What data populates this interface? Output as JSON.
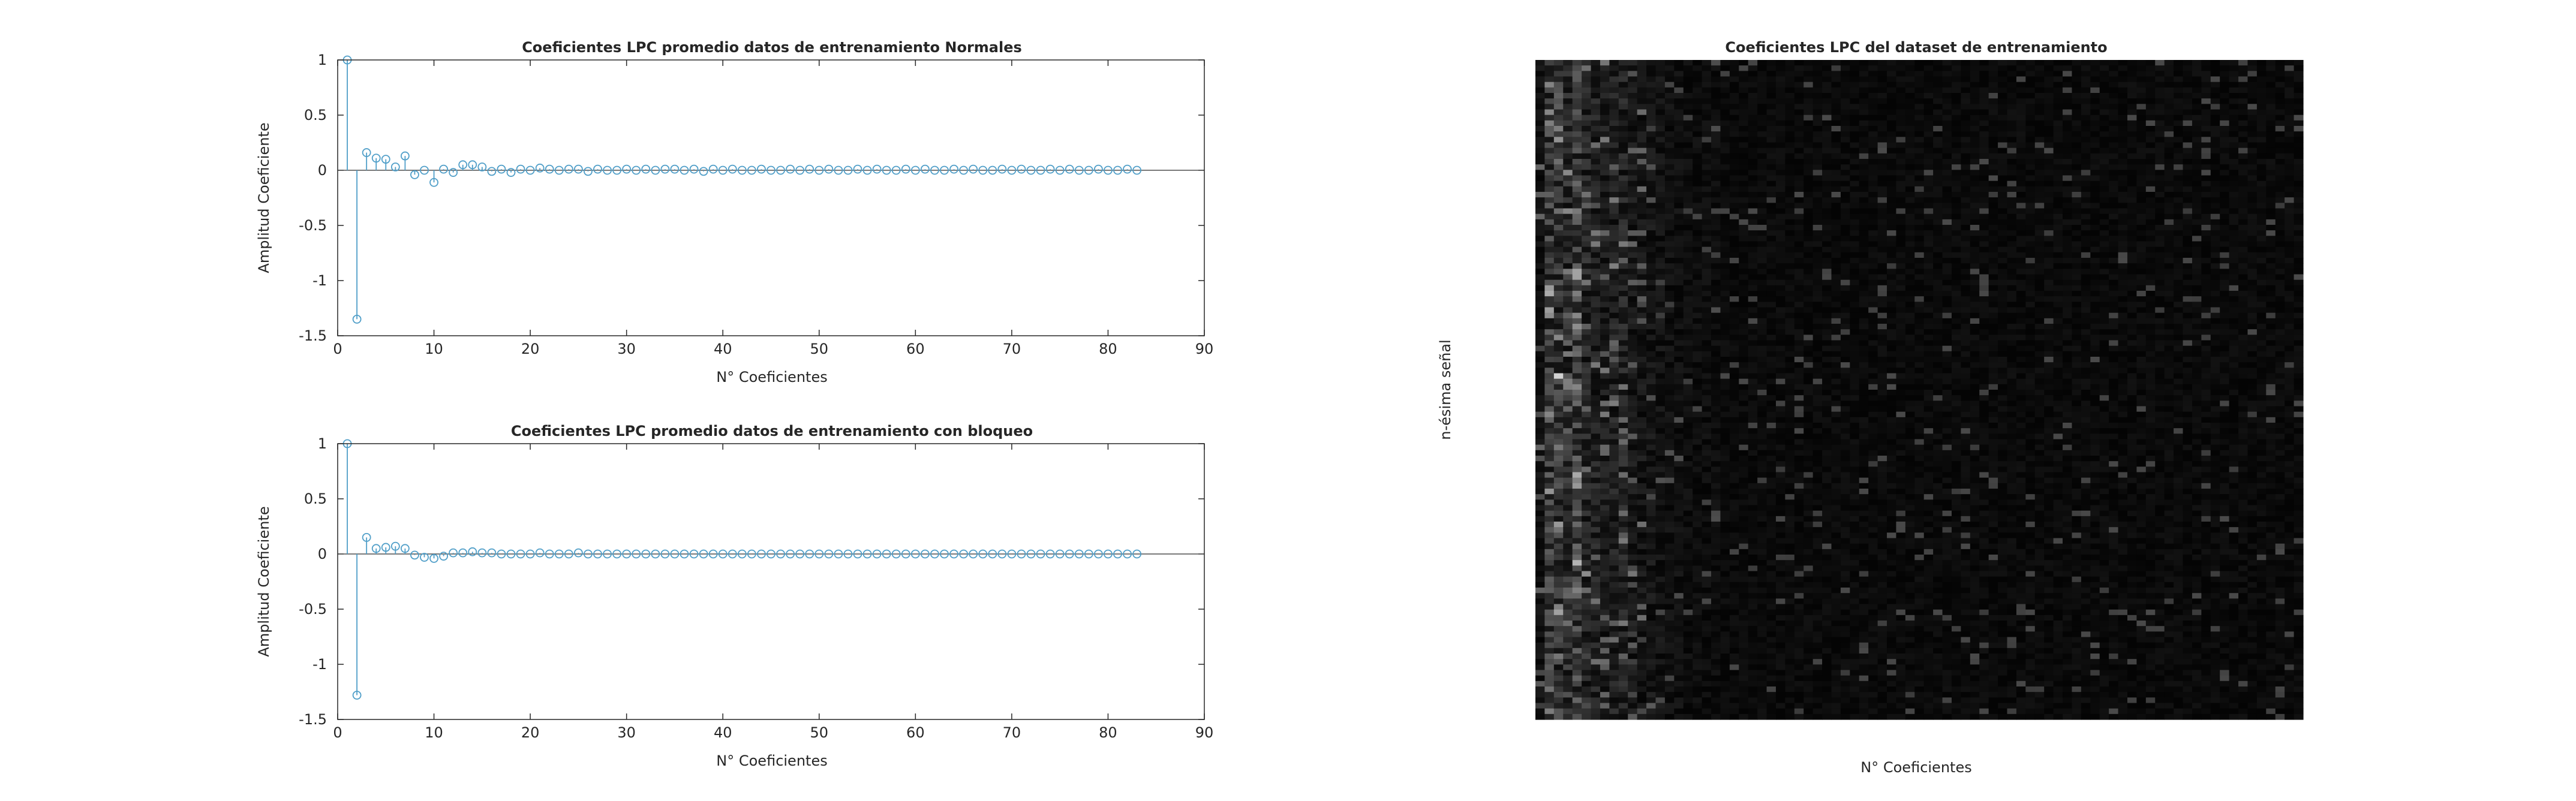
{
  "chart_data": [
    {
      "type": "stem",
      "title": "Coeficientes LPC promedio datos de entrenamiento Normales",
      "xlabel": "N° Coeficientes",
      "ylabel": "Amplitud Coeficiente",
      "xlim": [
        0,
        90
      ],
      "ylim": [
        -1.5,
        1
      ],
      "xticks": [
        "0",
        "10",
        "20",
        "30",
        "40",
        "50",
        "60",
        "70",
        "80",
        "90"
      ],
      "yticks": [
        "1",
        "0.5",
        "0",
        "-0.5",
        "-1",
        "-1.5"
      ],
      "grid": false,
      "color": "#4f9ec8",
      "x": [
        1,
        2,
        3,
        4,
        5,
        6,
        7,
        8,
        9,
        10,
        11,
        12,
        13,
        14,
        15,
        16,
        17,
        18,
        19,
        20,
        21,
        22,
        23,
        24,
        25,
        26,
        27,
        28,
        29,
        30,
        31,
        32,
        33,
        34,
        35,
        36,
        37,
        38,
        39,
        40,
        41,
        42,
        43,
        44,
        45,
        46,
        47,
        48,
        49,
        50,
        51,
        52,
        53,
        54,
        55,
        56,
        57,
        58,
        59,
        60,
        61,
        62,
        63,
        64,
        65,
        66,
        67,
        68,
        69,
        70,
        71,
        72,
        73,
        74,
        75,
        76,
        77,
        78,
        79,
        80,
        81,
        82,
        83
      ],
      "values": [
        1.0,
        -1.35,
        0.16,
        0.11,
        0.1,
        0.03,
        0.13,
        -0.04,
        0.0,
        -0.11,
        0.01,
        -0.02,
        0.05,
        0.05,
        0.03,
        -0.01,
        0.01,
        -0.02,
        0.01,
        0.0,
        0.02,
        0.01,
        0.0,
        0.01,
        0.01,
        -0.01,
        0.01,
        0.0,
        0.0,
        0.01,
        0.0,
        0.01,
        0.0,
        0.01,
        0.01,
        0.0,
        0.01,
        -0.01,
        0.01,
        0.0,
        0.01,
        0.0,
        0.0,
        0.01,
        0.0,
        0.0,
        0.01,
        0.0,
        0.01,
        0.0,
        0.01,
        0.0,
        0.0,
        0.01,
        0.0,
        0.01,
        0.0,
        0.0,
        0.01,
        0.0,
        0.01,
        0.0,
        0.0,
        0.01,
        0.0,
        0.01,
        0.0,
        0.0,
        0.01,
        0.0,
        0.01,
        0.0,
        0.0,
        0.01,
        0.0,
        0.01,
        0.0,
        0.0,
        0.01,
        0.0,
        0.0,
        0.01,
        0.0
      ]
    },
    {
      "type": "stem",
      "title": "Coeficientes LPC promedio datos de entrenamiento con bloqueo",
      "xlabel": "N° Coeficientes",
      "ylabel": "Amplitud Coeficiente",
      "xlim": [
        0,
        90
      ],
      "ylim": [
        -1.5,
        1
      ],
      "xticks": [
        "0",
        "10",
        "20",
        "30",
        "40",
        "50",
        "60",
        "70",
        "80",
        "90"
      ],
      "yticks": [
        "1",
        "0.5",
        "0",
        "-0.5",
        "-1",
        "-1.5"
      ],
      "grid": false,
      "color": "#4f9ec8",
      "x": [
        1,
        2,
        3,
        4,
        5,
        6,
        7,
        8,
        9,
        10,
        11,
        12,
        13,
        14,
        15,
        16,
        17,
        18,
        19,
        20,
        21,
        22,
        23,
        24,
        25,
        26,
        27,
        28,
        29,
        30,
        31,
        32,
        33,
        34,
        35,
        36,
        37,
        38,
        39,
        40,
        41,
        42,
        43,
        44,
        45,
        46,
        47,
        48,
        49,
        50,
        51,
        52,
        53,
        54,
        55,
        56,
        57,
        58,
        59,
        60,
        61,
        62,
        63,
        64,
        65,
        66,
        67,
        68,
        69,
        70,
        71,
        72,
        73,
        74,
        75,
        76,
        77,
        78,
        79,
        80,
        81,
        82,
        83
      ],
      "values": [
        1.0,
        -1.28,
        0.15,
        0.05,
        0.06,
        0.07,
        0.05,
        -0.01,
        -0.03,
        -0.04,
        -0.02,
        0.01,
        0.01,
        0.02,
        0.01,
        0.01,
        0.0,
        0.0,
        0.0,
        0.0,
        0.01,
        0.0,
        0.0,
        0.0,
        0.01,
        0.0,
        0.0,
        0.0,
        0.0,
        0.0,
        0.0,
        0.0,
        0.0,
        0.0,
        0.0,
        0.0,
        0.0,
        0.0,
        0.0,
        0.0,
        0.0,
        0.0,
        0.0,
        0.0,
        0.0,
        0.0,
        0.0,
        0.0,
        0.0,
        0.0,
        0.0,
        0.0,
        0.0,
        0.0,
        0.0,
        0.0,
        0.0,
        0.0,
        0.0,
        0.0,
        0.0,
        0.0,
        0.0,
        0.0,
        0.0,
        0.0,
        0.0,
        0.0,
        0.0,
        0.0,
        0.0,
        0.0,
        0.0,
        0.0,
        0.0,
        0.0,
        0.0,
        0.0,
        0.0,
        0.0,
        0.0,
        0.0,
        0.0
      ]
    },
    {
      "type": "heatmap",
      "title": "Coeficientes LPC del dataset de entrenamiento",
      "xlabel": "N° Coeficientes",
      "ylabel": "n-ésima señal",
      "colormap": "gray",
      "n_columns": 83,
      "n_rows": 120,
      "column_mean_intensity": [
        0.06,
        0.22,
        0.2,
        0.16,
        0.24,
        0.14,
        0.12,
        0.1,
        0.12,
        0.13,
        0.09,
        0.08,
        0.08,
        0.07,
        0.06,
        0.06,
        0.05,
        0.05,
        0.05,
        0.05,
        0.04,
        0.04,
        0.04,
        0.04,
        0.04,
        0.04,
        0.04,
        0.04,
        0.04,
        0.04,
        0.04,
        0.04,
        0.04,
        0.04,
        0.04,
        0.04,
        0.04,
        0.04,
        0.04,
        0.04,
        0.04,
        0.04,
        0.04,
        0.04,
        0.04,
        0.04,
        0.04,
        0.04,
        0.04,
        0.04,
        0.04,
        0.04,
        0.04,
        0.04,
        0.04,
        0.04,
        0.04,
        0.04,
        0.04,
        0.04,
        0.04,
        0.04,
        0.04,
        0.04,
        0.04,
        0.04,
        0.04,
        0.04,
        0.04,
        0.04,
        0.04,
        0.04,
        0.04,
        0.04,
        0.04,
        0.04,
        0.04,
        0.04,
        0.04,
        0.04,
        0.04,
        0.04,
        0.04
      ]
    }
  ]
}
